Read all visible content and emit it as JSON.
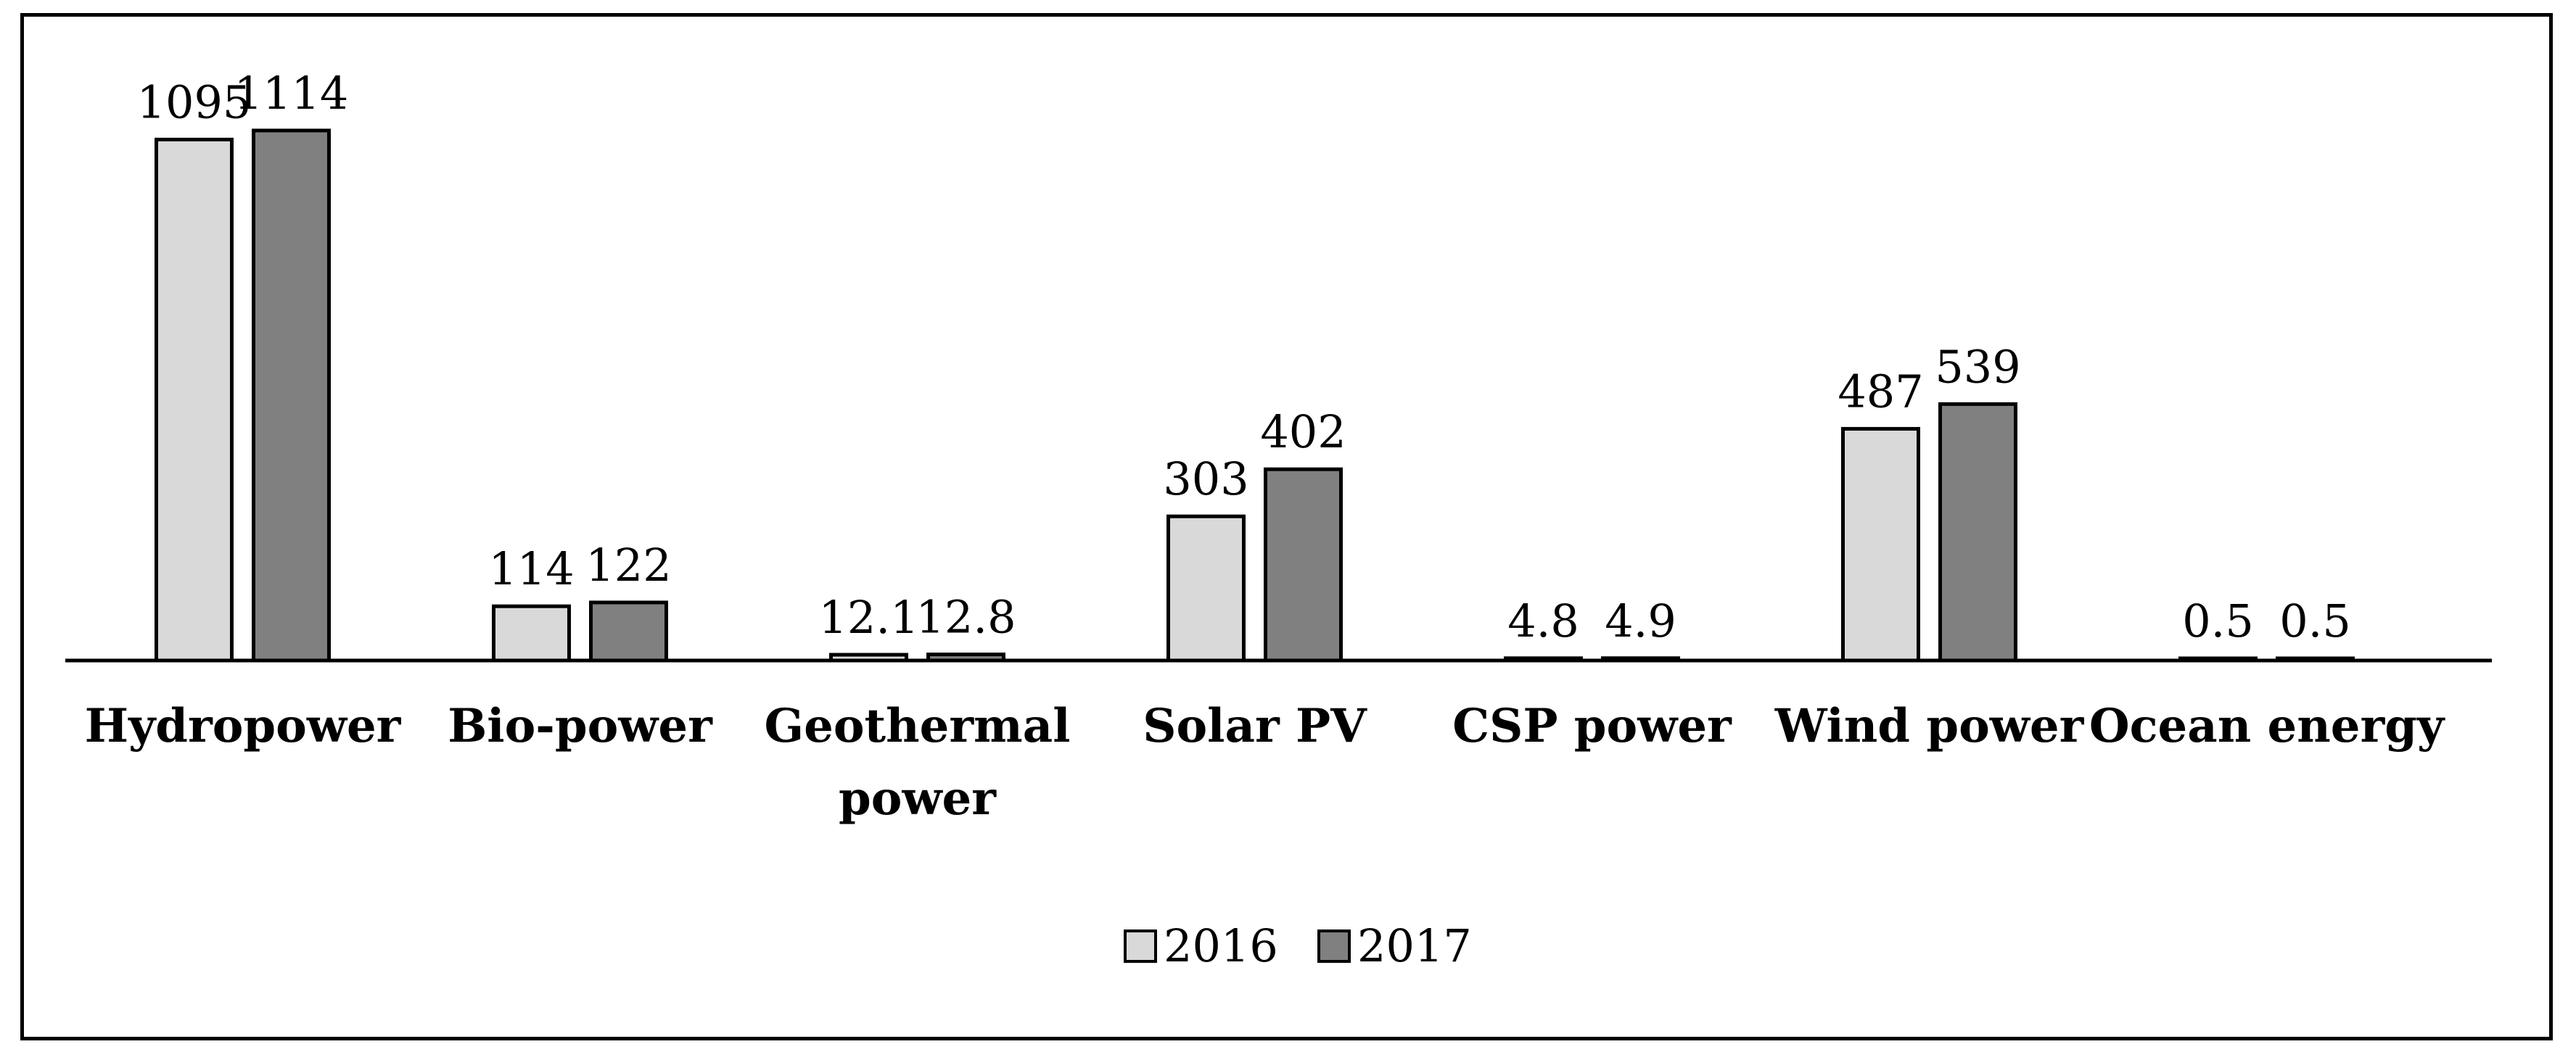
{
  "chart_data": {
    "type": "bar",
    "title": "",
    "xlabel": "",
    "ylabel": "",
    "categories": [
      "Hydropower",
      "Bio-power",
      "Geothermal power",
      "Solar PV",
      "CSP power",
      "Wind power",
      "Ocean energy"
    ],
    "category_lines": [
      [
        "Hydropower"
      ],
      [
        "Bio-power"
      ],
      [
        "Geothermal",
        "power"
      ],
      [
        "Solar PV"
      ],
      [
        "CSP power"
      ],
      [
        "Wind power"
      ],
      [
        "Ocean energy"
      ]
    ],
    "series": [
      {
        "name": "2016",
        "color": "#d9d9d9",
        "values": [
          1095,
          114,
          12.1,
          303,
          4.8,
          487,
          0.5
        ],
        "labels": [
          "1095",
          "114",
          "12.1",
          "303",
          "4.8",
          "487",
          "0.5"
        ]
      },
      {
        "name": "2017",
        "color": "#808080",
        "values": [
          1114,
          122,
          12.8,
          402,
          4.9,
          539,
          0.5
        ],
        "labels": [
          "1114",
          "122",
          "12.8",
          "402",
          "4.9",
          "539",
          "0.5"
        ]
      }
    ],
    "ylim": [
      0,
      1114
    ],
    "grid": false,
    "legend_position": "bottom-center",
    "data_labels": true
  }
}
